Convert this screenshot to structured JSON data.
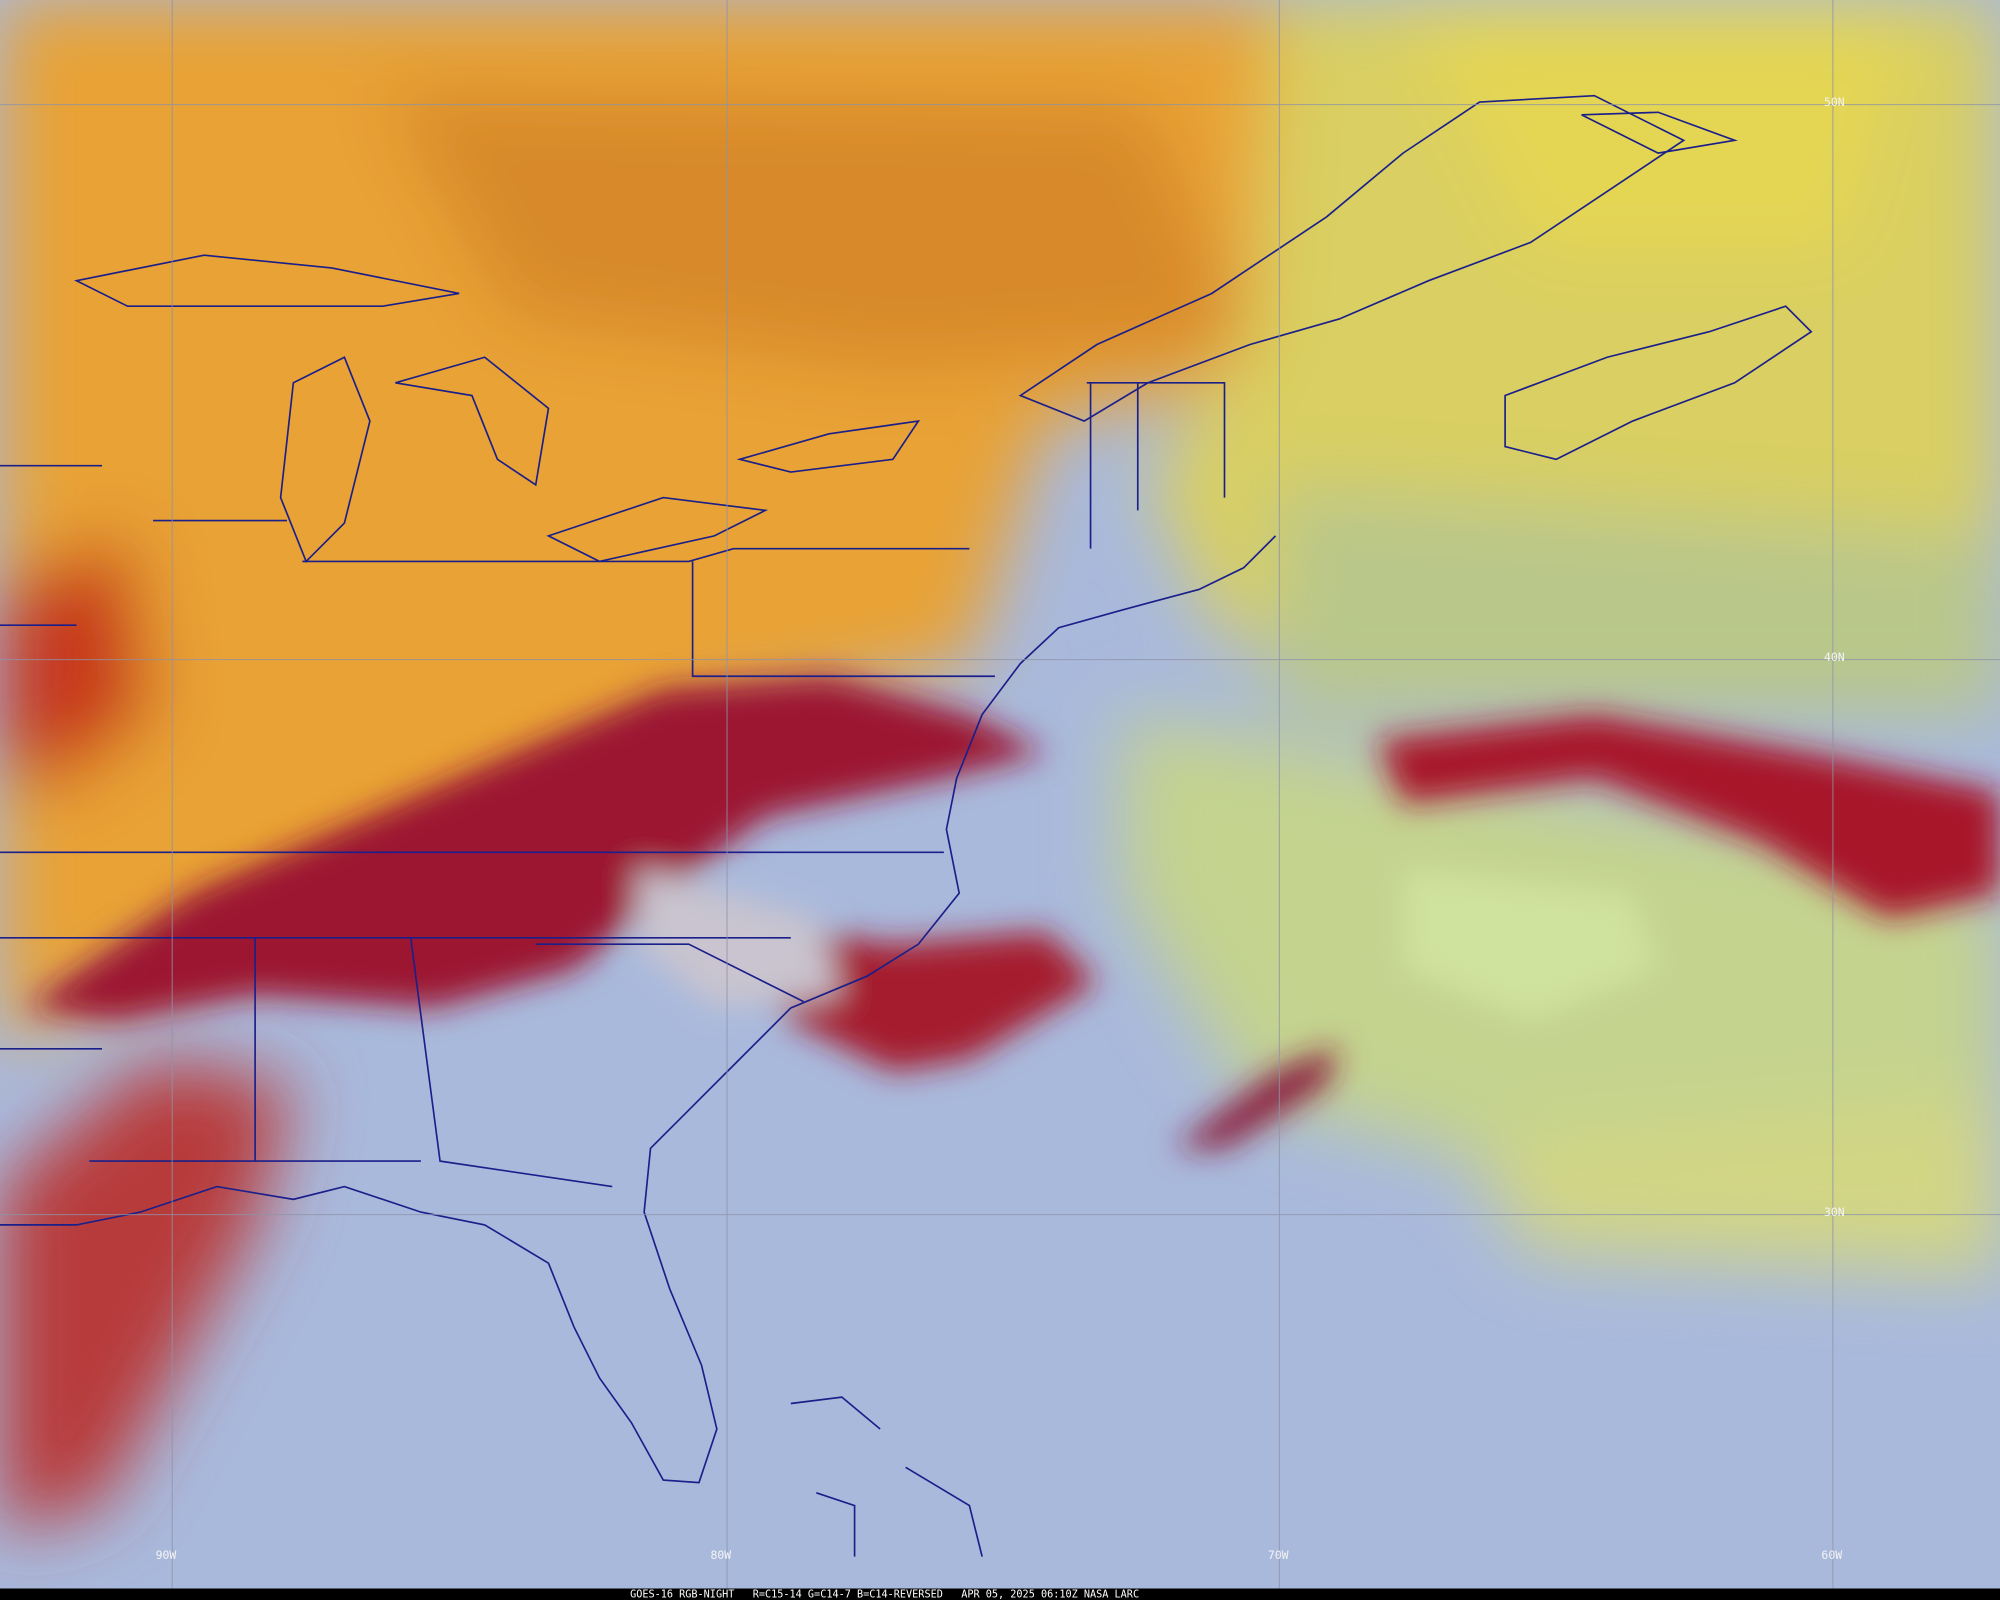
{
  "map": {
    "lat_labels": [
      "50N",
      "40N",
      "30N"
    ],
    "lon_labels": [
      "90W",
      "80W",
      "70W",
      "60W"
    ],
    "caption": "GOES-16 RGB-NIGHT   R=C15-14 G=C14-7 B=C14-REVERSED   APR 05, 2025 06:10Z NASA LARC"
  }
}
